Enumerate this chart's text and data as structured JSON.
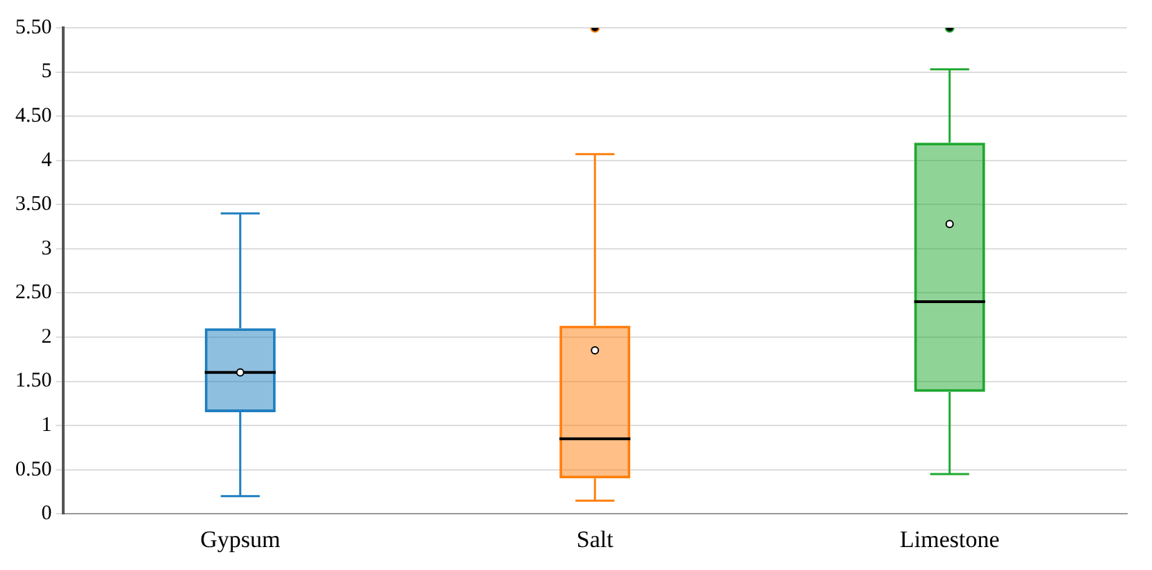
{
  "chart_data": {
    "type": "box",
    "categories": [
      "Gypsum",
      "Salt",
      "Limestone"
    ],
    "colors": [
      "#1f7fc0",
      "#ff7f0e",
      "#1fa830"
    ],
    "boxes": [
      {
        "low": 0.2,
        "q1": 1.15,
        "median": 1.6,
        "q3": 2.1,
        "high": 3.4,
        "mean": 1.6
      },
      {
        "low": 0.15,
        "q1": 0.4,
        "median": 0.85,
        "q3": 2.13,
        "high": 4.07,
        "mean": 1.85,
        "outliers": [
          5.5
        ]
      },
      {
        "low": 0.45,
        "q1": 1.38,
        "median": 2.4,
        "q3": 4.2,
        "high": 5.03,
        "mean": 3.28,
        "outliers": [
          5.5
        ]
      }
    ],
    "ylim": [
      0,
      5.5
    ],
    "yticks": [
      0,
      {
        "value": 0.5,
        "label": "0.50"
      },
      1,
      {
        "value": 1.5,
        "label": "1.50"
      },
      2,
      {
        "value": 2.5,
        "label": "2.50"
      },
      3,
      {
        "value": 3.5,
        "label": "3.50"
      },
      4,
      {
        "value": 4.5,
        "label": "4.50"
      },
      5,
      {
        "value": 5.5,
        "label": "5.50"
      }
    ],
    "grid": "y",
    "legend": false
  }
}
